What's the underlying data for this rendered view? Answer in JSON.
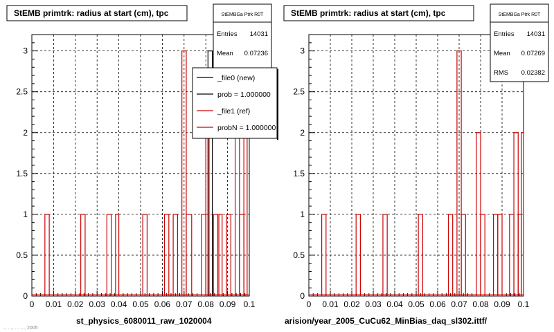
{
  "chart_data": [
    {
      "type": "histogram",
      "title": "StEMB primtrk: radius at start (cm), tpc",
      "xlabel": "st_physics_6080011_raw_1020004",
      "ylabel": "",
      "xlim": [
        0,
        0.1
      ],
      "ylim": [
        0,
        3.2
      ],
      "xticks": [
        "0",
        "0.01",
        "0.02",
        "0.03",
        "0.04",
        "0.05",
        "0.06",
        "0.07",
        "0.08",
        "0.09",
        "0.1"
      ],
      "yticks": [
        "0",
        "0.5",
        "1",
        "1.5",
        "2",
        "2.5",
        "3"
      ],
      "grid": true,
      "stats": {
        "name": "StEMBGa Ptrk R0T",
        "rows": [
          {
            "label": "Entries",
            "value": "14031"
          },
          {
            "label": "Mean",
            "value": "0.07236"
          }
        ]
      },
      "legend": {
        "placement": "top-right",
        "entries": [
          {
            "label": "_file0 (new)",
            "color": "#000000"
          },
          {
            "label": "prob = 1.000000",
            "color": "#000000"
          },
          {
            "label": "_file1 (ref)",
            "color": "#cc0000"
          },
          {
            "label": "probN = 1.000000",
            "color": "#cc0000"
          }
        ]
      },
      "series": [
        {
          "name": "_file0 (new)",
          "color": "#000000",
          "bins": [
            [
              0.081,
              0.083,
              3
            ]
          ]
        },
        {
          "name": "_file1 (ref)",
          "color": "#cc0000",
          "bins": [
            [
              0.006,
              0.008,
              1
            ],
            [
              0.0225,
              0.0245,
              1
            ],
            [
              0.0345,
              0.0365,
              1
            ],
            [
              0.0385,
              0.04,
              1
            ],
            [
              0.051,
              0.053,
              1
            ],
            [
              0.061,
              0.063,
              1
            ],
            [
              0.065,
              0.067,
              1
            ],
            [
              0.069,
              0.071,
              3
            ],
            [
              0.071,
              0.0735,
              1
            ],
            [
              0.078,
              0.08,
              1
            ],
            [
              0.08,
              0.0815,
              2
            ],
            [
              0.0835,
              0.0855,
              1
            ],
            [
              0.086,
              0.0875,
              1
            ],
            [
              0.0895,
              0.0915,
              1
            ],
            [
              0.0935,
              0.0955,
              2
            ],
            [
              0.0955,
              0.0975,
              1
            ],
            [
              0.0975,
              0.099,
              2
            ]
          ]
        }
      ]
    },
    {
      "type": "histogram",
      "title": "StEMB primtrk: radius at start (cm), tpc",
      "xlabel": "arision/year_2005_CuCu62_MinBias_daq_sl302.ittf/",
      "ylabel": "",
      "xlim": [
        0,
        0.1
      ],
      "ylim": [
        0,
        3.2
      ],
      "xticks": [
        "0",
        "0.01",
        "0.02",
        "0.03",
        "0.04",
        "0.05",
        "0.06",
        "0.07",
        "0.08",
        "0.09",
        "0.1"
      ],
      "yticks": [
        "0",
        "0.5",
        "1",
        "1.5",
        "2",
        "2.5",
        "3"
      ],
      "grid": true,
      "stats": {
        "name": "StEMBGa Ptrk R0T",
        "rows": [
          {
            "label": "Entries",
            "value": "14031"
          },
          {
            "label": "Mean",
            "value": "0.07269"
          },
          {
            "label": "RMS",
            "value": "0.02382"
          }
        ]
      },
      "legend": null,
      "series": [
        {
          "name": "",
          "color": "#cc0000",
          "bins": [
            [
              0.006,
              0.008,
              1
            ],
            [
              0.022,
              0.024,
              1
            ],
            [
              0.0345,
              0.0365,
              1
            ],
            [
              0.051,
              0.053,
              1
            ],
            [
              0.065,
              0.067,
              1
            ],
            [
              0.069,
              0.071,
              3
            ],
            [
              0.071,
              0.073,
              1
            ],
            [
              0.078,
              0.08,
              2
            ],
            [
              0.08,
              0.082,
              1
            ],
            [
              0.086,
              0.088,
              1
            ],
            [
              0.088,
              0.09,
              1
            ],
            [
              0.0935,
              0.0955,
              1
            ],
            [
              0.0955,
              0.0975,
              2
            ],
            [
              0.0975,
              0.099,
              1
            ],
            [
              0.099,
              0.1,
              2
            ]
          ]
        }
      ]
    }
  ],
  "footer_fragment": "... ..., ... ..., 2005"
}
